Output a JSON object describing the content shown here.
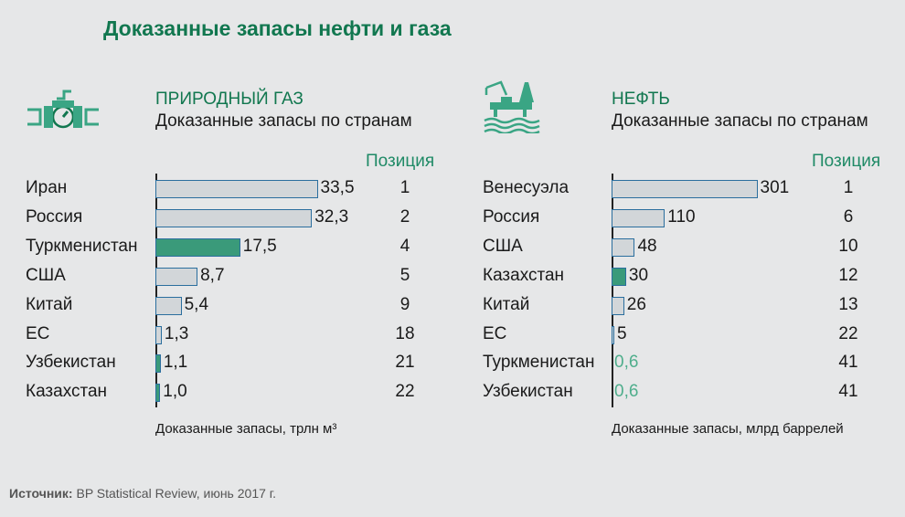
{
  "title": "Доказанные запасы нефти и газа",
  "colors": {
    "accent": "#11774f",
    "bar": "#d2d6d9",
    "bar_highlight": "#3a9a7a",
    "bar_border": "#2a6e9e"
  },
  "source": {
    "label": "Источник:",
    "text": " BP Statistical Review, июнь 2017 г."
  },
  "chart_data": [
    {
      "type": "bar",
      "orientation": "horizontal",
      "title": "ПРИРОДНЫЙ ГАЗ",
      "subtitle": "Доказанные запасы по странам",
      "xlabel": "Доказанные запасы, трлн м³",
      "position_header": "Позиция",
      "categories": [
        "Иран",
        "Россия",
        "Туркменистан",
        "США",
        "Китай",
        "ЕС",
        "Узбекистан",
        "Казахстан"
      ],
      "values": [
        33.5,
        32.3,
        17.5,
        8.7,
        5.4,
        1.3,
        1.1,
        1.0
      ],
      "labels": [
        "33,5",
        "32,3",
        "17,5",
        "8,7",
        "5,4",
        "1,3",
        "1,1",
        "1,0"
      ],
      "positions": [
        "1",
        "2",
        "4",
        "5",
        "9",
        "18",
        "21",
        "22"
      ],
      "highlight": [
        false,
        false,
        true,
        false,
        false,
        false,
        true,
        true
      ],
      "no_bar": [
        false,
        false,
        false,
        false,
        false,
        false,
        false,
        false
      ]
    },
    {
      "type": "bar",
      "orientation": "horizontal",
      "title": "НЕФТЬ",
      "subtitle": "Доказанные запасы по странам",
      "xlabel": "Доказанные запасы, млрд баррелей",
      "position_header": "Позиция",
      "categories": [
        "Венесуэла",
        "Россия",
        "США",
        "Казахстан",
        "Китай",
        "ЕС",
        "Туркменистан",
        "Узбекистан"
      ],
      "values": [
        301,
        110,
        48,
        30,
        26,
        5,
        0.6,
        0.6
      ],
      "labels": [
        "301",
        "110",
        "48",
        "30",
        "26",
        "5",
        "0,6",
        "0,6"
      ],
      "positions": [
        "1",
        "6",
        "10",
        "12",
        "13",
        "22",
        "41",
        "41"
      ],
      "highlight": [
        false,
        false,
        false,
        true,
        false,
        false,
        false,
        false
      ],
      "no_bar": [
        false,
        false,
        false,
        false,
        false,
        false,
        true,
        true
      ]
    }
  ]
}
